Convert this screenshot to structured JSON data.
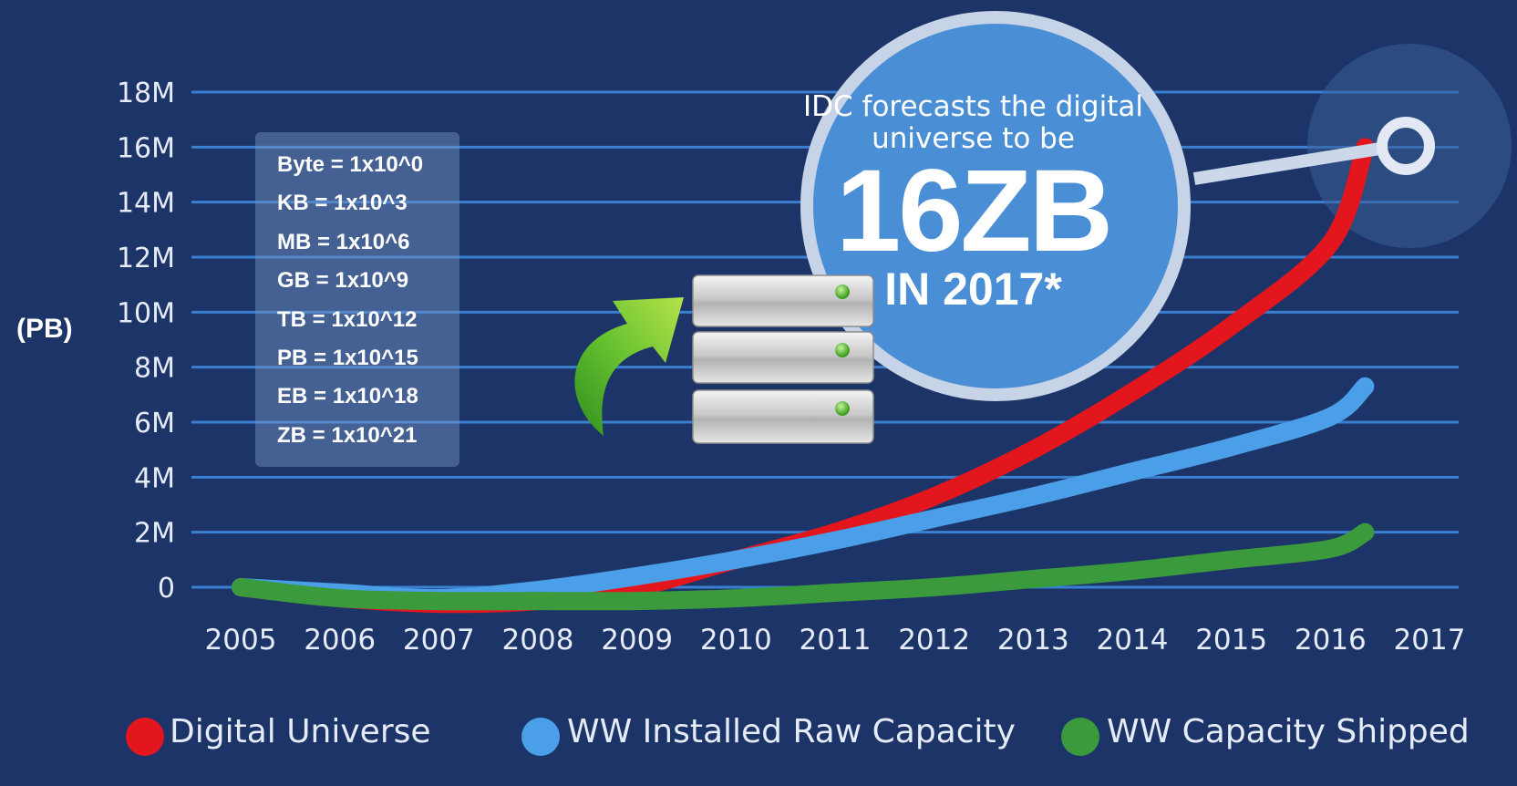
{
  "unit_definitions": [
    "Byte = 1x10^0",
    "KB = 1x10^3",
    "MB = 1x10^6",
    "GB = 1x10^9",
    "TB = 1x10^12",
    "PB = 1x10^15",
    "EB = 1x10^18",
    "ZB = 1x10^21"
  ],
  "callout": {
    "line1": "IDC forecasts the digital universe to be",
    "value": "16ZB",
    "year": "IN 2017*"
  },
  "icons": [
    "green-arrow-icon",
    "server-stack-icon"
  ],
  "chart_data": {
    "type": "line",
    "title": "",
    "xlabel": "",
    "ylabel": "(PB)",
    "x": [
      "2005",
      "2006",
      "2007",
      "2008",
      "2009",
      "2010",
      "2011",
      "2012",
      "2013",
      "2014",
      "2015",
      "2016",
      "2017"
    ],
    "ylim": [
      0,
      18000000
    ],
    "yticks": [
      0,
      2000000,
      4000000,
      6000000,
      8000000,
      10000000,
      12000000,
      14000000,
      16000000,
      18000000
    ],
    "ytick_labels": [
      "0",
      "2M",
      "4M",
      "6M",
      "8M",
      "10M",
      "12M",
      "14M",
      "16M",
      "18M"
    ],
    "grid": true,
    "legend_position": "bottom",
    "series": [
      {
        "name": "Digital Universe",
        "color": "#e3161e",
        "values": [
          0,
          -400000,
          -600000,
          -500000,
          0,
          1000000,
          2000000,
          3300000,
          5000000,
          7100000,
          9500000,
          12500000,
          16000000
        ]
      },
      {
        "name": "WW Installed Raw Capacity",
        "color": "#4a9fe8",
        "values": [
          0,
          -200000,
          -400000,
          -100000,
          400000,
          1000000,
          1700000,
          2500000,
          3300000,
          4200000,
          5100000,
          6200000,
          7300000
        ]
      },
      {
        "name": "WW Capacity Shipped",
        "color": "#3a9a3c",
        "values": [
          0,
          -400000,
          -500000,
          -500000,
          -500000,
          -400000,
          -200000,
          0,
          300000,
          600000,
          1000000,
          1400000,
          2000000
        ]
      }
    ]
  }
}
